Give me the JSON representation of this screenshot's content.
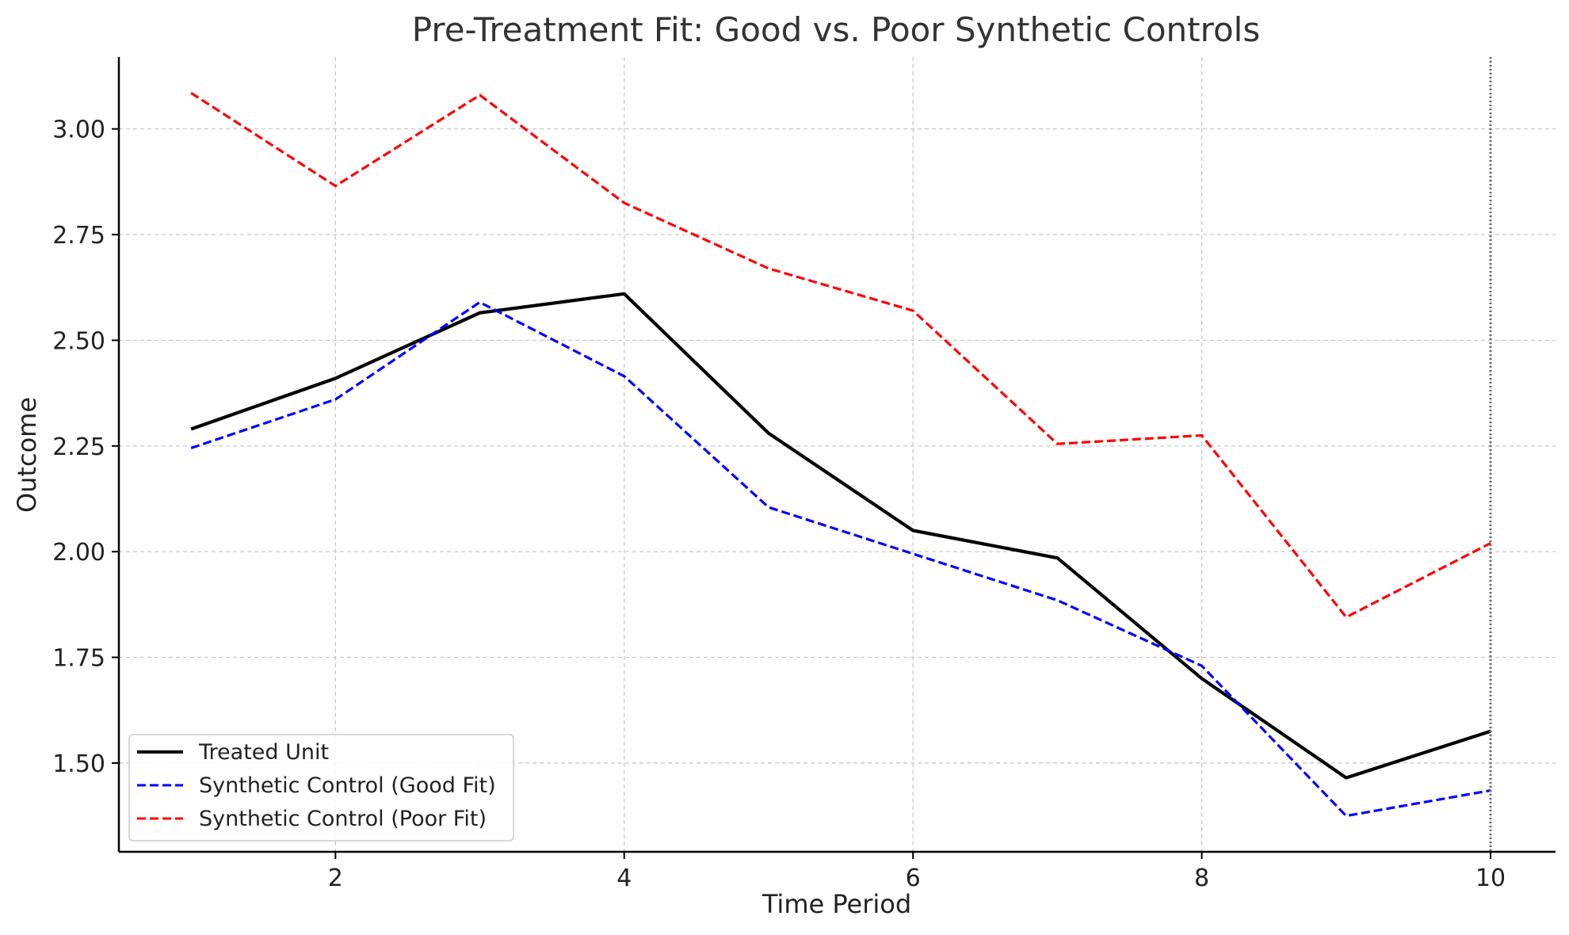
{
  "chart_data": {
    "type": "line",
    "title": "Pre-Treatment Fit: Good vs. Poor Synthetic Controls",
    "xlabel": "Time Period",
    "ylabel": "Outcome",
    "x": [
      1,
      2,
      3,
      4,
      5,
      6,
      7,
      8,
      9,
      10
    ],
    "xlim": [
      0.5,
      10.45
    ],
    "ylim": [
      1.29,
      3.17
    ],
    "xticks": [
      2,
      4,
      6,
      8,
      10
    ],
    "yticks": [
      1.5,
      1.75,
      2.0,
      2.25,
      2.5,
      2.75,
      3.0
    ],
    "grid": true,
    "legend_position": "lower-left",
    "treatment_line_x": 10,
    "series": [
      {
        "name": "Treated Unit",
        "color": "#000000",
        "style": "solid",
        "values": [
          2.29,
          2.41,
          2.565,
          2.61,
          2.28,
          2.05,
          1.985,
          1.7,
          1.465,
          1.575
        ]
      },
      {
        "name": "Synthetic Control (Good Fit)",
        "color": "#0000ff",
        "style": "dashed",
        "values": [
          2.245,
          2.36,
          2.59,
          2.415,
          2.105,
          1.995,
          1.885,
          1.73,
          1.375,
          1.435
        ]
      },
      {
        "name": "Synthetic Control (Poor Fit)",
        "color": "#ff0000",
        "style": "dashed",
        "values": [
          3.085,
          2.865,
          3.08,
          2.825,
          2.67,
          2.57,
          2.255,
          2.275,
          1.845,
          2.02
        ]
      }
    ]
  }
}
